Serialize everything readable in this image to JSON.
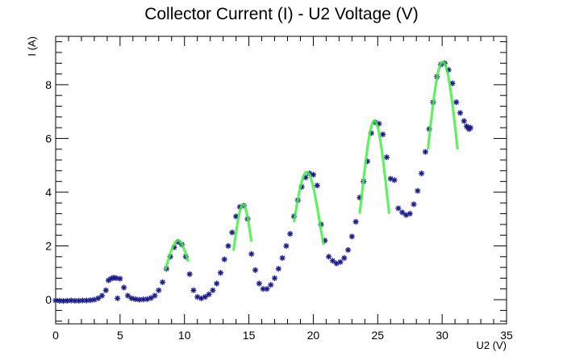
{
  "chart_data": {
    "type": "scatter",
    "title": "Collector Current (I) - U2 Voltage (V)",
    "xlabel": "U2 (V)",
    "ylabel": "I (A)",
    "xlim": [
      0,
      35
    ],
    "ylim": [
      -0.9,
      9.8
    ],
    "x_ticks": [
      0,
      5,
      10,
      15,
      20,
      25,
      30,
      35
    ],
    "y_ticks": [
      0,
      2,
      4,
      6,
      8
    ],
    "x_tick_labels": [
      "0",
      "5",
      "10",
      "15",
      "20",
      "25",
      "30",
      "35"
    ],
    "y_tick_labels": [
      "0",
      "2",
      "4",
      "6",
      "8"
    ],
    "grid": false,
    "marker_color": "#1a1a8c",
    "fit_color": "#44ee44",
    "series": [
      {
        "values": [
          [
            0.0,
            -0.03
          ],
          [
            0.3,
            -0.04
          ],
          [
            0.6,
            -0.05
          ],
          [
            0.9,
            -0.04
          ],
          [
            1.2,
            -0.03
          ],
          [
            1.5,
            -0.04
          ],
          [
            1.8,
            -0.04
          ],
          [
            2.1,
            -0.03
          ],
          [
            2.4,
            -0.03
          ],
          [
            2.7,
            -0.02
          ],
          [
            3.0,
            0.0
          ],
          [
            3.3,
            0.05
          ],
          [
            3.6,
            0.15
          ],
          [
            3.9,
            0.35
          ],
          [
            4.1,
            0.72
          ],
          [
            4.3,
            0.78
          ],
          [
            4.5,
            0.82
          ],
          [
            4.7,
            0.8
          ],
          [
            4.8,
            0.05
          ],
          [
            5.0,
            0.78
          ],
          [
            5.3,
            0.45
          ],
          [
            5.6,
            0.15
          ],
          [
            5.9,
            0.05
          ],
          [
            6.2,
            0.02
          ],
          [
            6.5,
            0.0
          ],
          [
            6.8,
            0.01
          ],
          [
            7.1,
            0.02
          ],
          [
            7.4,
            0.06
          ],
          [
            7.7,
            0.15
          ],
          [
            8.0,
            0.35
          ],
          [
            8.3,
            0.65
          ],
          [
            8.6,
            1.15
          ],
          [
            8.9,
            1.6
          ],
          [
            9.2,
            1.95
          ],
          [
            9.5,
            2.15
          ],
          [
            9.8,
            2.05
          ],
          [
            10.1,
            1.6
          ],
          [
            10.4,
            0.95
          ],
          [
            10.7,
            0.35
          ],
          [
            11.0,
            0.1
          ],
          [
            11.3,
            0.05
          ],
          [
            11.6,
            0.1
          ],
          [
            11.9,
            0.2
          ],
          [
            12.2,
            0.35
          ],
          [
            12.5,
            0.6
          ],
          [
            12.8,
            1.0
          ],
          [
            13.1,
            1.5
          ],
          [
            13.4,
            2.0
          ],
          [
            13.7,
            2.5
          ],
          [
            14.0,
            3.1
          ],
          [
            14.3,
            3.45
          ],
          [
            14.6,
            3.5
          ],
          [
            14.9,
            3.0
          ],
          [
            15.2,
            1.7
          ],
          [
            15.5,
            1.1
          ],
          [
            15.8,
            0.6
          ],
          [
            16.1,
            0.4
          ],
          [
            16.4,
            0.4
          ],
          [
            16.7,
            0.55
          ],
          [
            17.0,
            0.8
          ],
          [
            17.3,
            1.15
          ],
          [
            17.6,
            1.55
          ],
          [
            17.9,
            2.0
          ],
          [
            18.2,
            2.45
          ],
          [
            18.5,
            3.1
          ],
          [
            18.8,
            3.7
          ],
          [
            19.1,
            4.2
          ],
          [
            19.4,
            4.55
          ],
          [
            19.7,
            4.7
          ],
          [
            20.0,
            4.65
          ],
          [
            20.3,
            4.25
          ],
          [
            20.6,
            2.8
          ],
          [
            20.9,
            2.2
          ],
          [
            21.2,
            1.6
          ],
          [
            21.5,
            1.45
          ],
          [
            21.8,
            1.35
          ],
          [
            22.1,
            1.4
          ],
          [
            22.4,
            1.55
          ],
          [
            22.7,
            1.85
          ],
          [
            23.0,
            2.35
          ],
          [
            23.3,
            2.9
          ],
          [
            23.6,
            3.8
          ],
          [
            23.9,
            4.4
          ],
          [
            24.2,
            5.15
          ],
          [
            24.5,
            6.2
          ],
          [
            24.8,
            6.6
          ],
          [
            25.1,
            6.55
          ],
          [
            25.4,
            6.15
          ],
          [
            25.7,
            5.3
          ],
          [
            26.0,
            4.5
          ],
          [
            26.3,
            4.45
          ],
          [
            26.6,
            3.4
          ],
          [
            26.9,
            3.25
          ],
          [
            27.2,
            3.15
          ],
          [
            27.5,
            3.2
          ],
          [
            27.8,
            3.55
          ],
          [
            28.1,
            4.05
          ],
          [
            28.4,
            4.7
          ],
          [
            28.7,
            5.5
          ],
          [
            29.0,
            6.35
          ],
          [
            29.3,
            7.35
          ],
          [
            29.6,
            8.3
          ],
          [
            29.9,
            8.75
          ],
          [
            30.2,
            8.8
          ],
          [
            30.5,
            8.55
          ],
          [
            30.8,
            8.05
          ],
          [
            31.1,
            7.35
          ],
          [
            31.4,
            6.95
          ],
          [
            31.7,
            6.65
          ],
          [
            31.9,
            6.45
          ],
          [
            32.0,
            6.4
          ],
          [
            32.1,
            6.35
          ],
          [
            32.2,
            6.4
          ]
        ]
      }
    ],
    "fit_peaks": [
      {
        "center": 9.5,
        "amplitude": 2.2,
        "sigma": 0.85,
        "x_range": [
          8.5,
          10.3
        ]
      },
      {
        "center": 14.55,
        "amplitude": 3.55,
        "sigma": 0.65,
        "x_range": [
          13.8,
          15.2
        ]
      },
      {
        "center": 19.5,
        "amplitude": 4.75,
        "sigma": 1.0,
        "x_range": [
          18.5,
          20.8
        ]
      },
      {
        "center": 24.75,
        "amplitude": 6.65,
        "sigma": 0.95,
        "x_range": [
          23.6,
          25.9
        ]
      },
      {
        "center": 30.05,
        "amplitude": 8.85,
        "sigma": 1.2,
        "x_range": [
          28.9,
          31.2
        ]
      }
    ]
  }
}
